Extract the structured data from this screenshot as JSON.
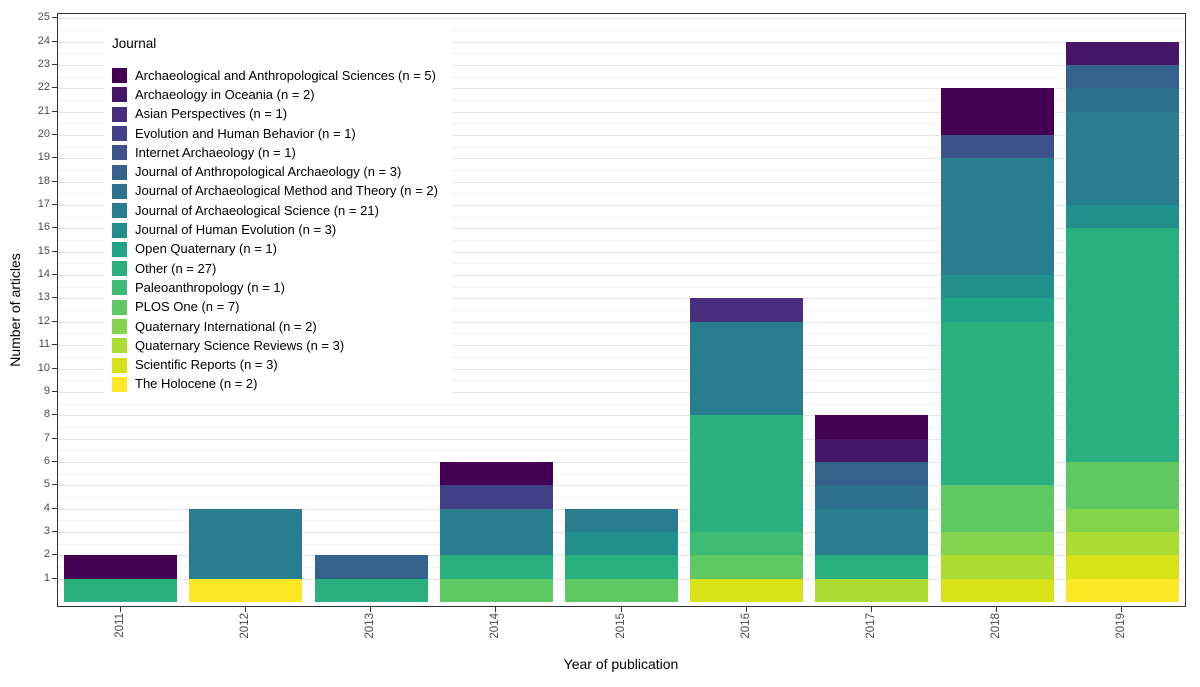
{
  "chart_data": {
    "type": "bar",
    "stacked": true,
    "stack_order": "first-series-on-top",
    "orientation": "vertical",
    "title": "",
    "x_label": "Year of publication",
    "y_label": "Number of articles",
    "categories": [
      "2011",
      "2012",
      "2013",
      "2014",
      "2015",
      "2016",
      "2017",
      "2018",
      "2019"
    ],
    "year_totals": [
      2,
      4,
      2,
      6,
      4,
      13,
      8,
      22,
      24
    ],
    "ylim": [
      0,
      25
    ],
    "y_tick_step": 1,
    "grid": true,
    "legend_title": "Journal",
    "legend_position": "top-left-inside",
    "palette": "viridis",
    "series": [
      {
        "name": "Archaeological and Anthropological Sciences (n = 5)",
        "color": "#440154",
        "values": [
          1,
          0,
          0,
          1,
          0,
          0,
          1,
          2,
          0
        ]
      },
      {
        "name": "Archaeology in Oceania (n = 2)",
        "color": "#461769",
        "values": [
          0,
          0,
          0,
          0,
          0,
          0,
          1,
          0,
          1
        ]
      },
      {
        "name": "Asian Perspectives (n = 1)",
        "color": "#472D7B",
        "values": [
          0,
          0,
          0,
          0,
          0,
          1,
          0,
          0,
          0
        ]
      },
      {
        "name": "Evolution and Human Behavior (n = 1)",
        "color": "#424086",
        "values": [
          0,
          0,
          0,
          1,
          0,
          0,
          0,
          0,
          0
        ]
      },
      {
        "name": "Internet Archaeology (n = 1)",
        "color": "#3B528B",
        "values": [
          0,
          0,
          0,
          0,
          0,
          0,
          0,
          1,
          0
        ]
      },
      {
        "name": "Journal of Anthropological Archaeology (n = 3)",
        "color": "#33628D",
        "values": [
          0,
          0,
          1,
          0,
          0,
          0,
          1,
          0,
          1
        ]
      },
      {
        "name": "Journal of Archaeological Method and Theory (n = 2)",
        "color": "#2D708E",
        "values": [
          0,
          0,
          0,
          0,
          0,
          0,
          1,
          0,
          1
        ]
      },
      {
        "name": "Journal of Archaeological Science (n = 21)",
        "color": "#287D8E",
        "values": [
          0,
          3,
          0,
          2,
          1,
          4,
          2,
          5,
          4
        ]
      },
      {
        "name": "Journal of Human Evolution (n = 3)",
        "color": "#21908C",
        "values": [
          0,
          0,
          0,
          0,
          1,
          0,
          0,
          1,
          1
        ]
      },
      {
        "name": "Open Quaternary (n = 1)",
        "color": "#20A386",
        "values": [
          0,
          0,
          0,
          0,
          0,
          0,
          0,
          1,
          0
        ]
      },
      {
        "name": "Other (n = 27)",
        "color": "#2AB07F",
        "values": [
          1,
          0,
          1,
          1,
          1,
          5,
          1,
          7,
          10
        ]
      },
      {
        "name": "Paleoanthropology (n = 1)",
        "color": "#3EBC74",
        "values": [
          0,
          0,
          0,
          0,
          0,
          1,
          0,
          0,
          0
        ]
      },
      {
        "name": "PLOS One (n = 7)",
        "color": "#5EC962",
        "values": [
          0,
          0,
          0,
          1,
          1,
          1,
          0,
          2,
          2
        ]
      },
      {
        "name": "Quaternary International (n = 2)",
        "color": "#84D44B",
        "values": [
          0,
          0,
          0,
          0,
          0,
          0,
          0,
          1,
          1
        ]
      },
      {
        "name": "Quaternary Science Reviews (n = 3)",
        "color": "#AADC32",
        "values": [
          0,
          0,
          0,
          0,
          0,
          0,
          1,
          1,
          1
        ]
      },
      {
        "name": "Scientific Reports (n = 3)",
        "color": "#D8E219",
        "values": [
          0,
          0,
          0,
          0,
          0,
          1,
          0,
          1,
          1
        ]
      },
      {
        "name": "The Holocene (n = 2)",
        "color": "#FDE725",
        "values": [
          0,
          1,
          0,
          0,
          0,
          0,
          0,
          0,
          1
        ]
      }
    ]
  }
}
